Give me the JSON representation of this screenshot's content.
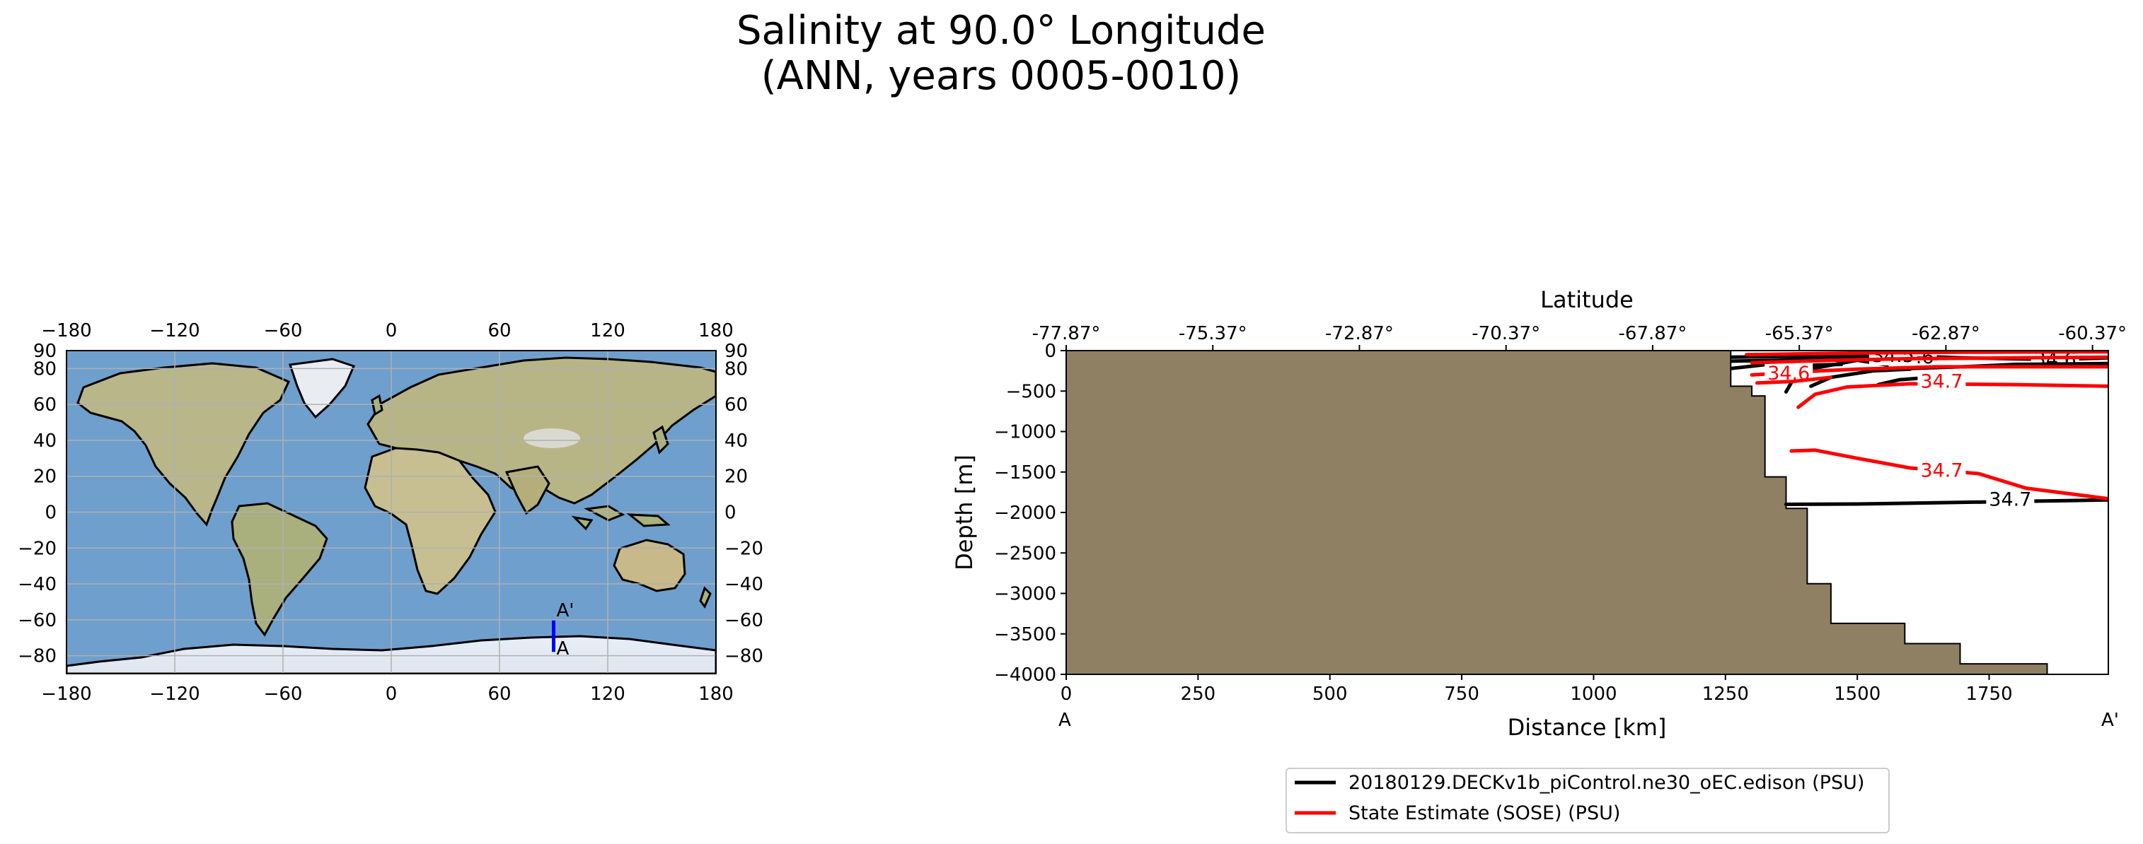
{
  "title": {
    "line1": "Salinity at 90.0° Longitude",
    "line2": "(ANN, years 0005-0010)"
  },
  "colors": {
    "model": "#000000",
    "obs": "#ff0000",
    "land": "#8f8064",
    "ocean": "#7fa8cf",
    "transect": "#0000ff",
    "grid": "#b0b0b0"
  },
  "map": {
    "x_ticks": [
      "−180",
      "−120",
      "−60",
      "0",
      "60",
      "120",
      "180"
    ],
    "y_ticks": [
      "90",
      "80",
      "60",
      "40",
      "20",
      "0",
      "−20",
      "−40",
      "−60",
      "−80"
    ],
    "y_ticks_right": [
      "90",
      "80",
      "60",
      "40",
      "20",
      "0",
      "−20",
      "−40",
      "−60",
      "−80"
    ],
    "x_tick_values": [
      -180,
      -120,
      -60,
      0,
      60,
      120,
      180
    ],
    "y_tick_values": [
      90,
      80,
      60,
      40,
      20,
      0,
      -20,
      -40,
      -60,
      -80
    ],
    "transect": {
      "lon": 90.0,
      "lat_start": -77.87,
      "lat_end": -60.37
    },
    "start_label": "A",
    "end_label": "A'"
  },
  "chart_data": {
    "type": "line",
    "title": "",
    "xlabel": "Distance [km]",
    "ylabel": "Depth [m]",
    "top_xlabel": "Latitude",
    "xlim": [
      0,
      1976
    ],
    "ylim": [
      -4000,
      0
    ],
    "x_ticks": [
      0,
      250,
      500,
      750,
      1000,
      1250,
      1500,
      1750
    ],
    "x_tick_labels": [
      "0",
      "250",
      "500",
      "750",
      "1000",
      "1250",
      "1500",
      "1750"
    ],
    "y_ticks": [
      0,
      -500,
      -1000,
      -1500,
      -2000,
      -2500,
      -3000,
      -3500,
      -4000
    ],
    "y_tick_labels": [
      "0",
      "−500",
      "−1000",
      "−1500",
      "−2000",
      "−2500",
      "−3000",
      "−3500",
      "−4000"
    ],
    "top_ticks_km": [
      0,
      278,
      556,
      834,
      1112,
      1390,
      1668,
      1946
    ],
    "top_tick_labels": [
      "-77.87°",
      "-75.37°",
      "-72.87°",
      "-70.37°",
      "-67.87°",
      "-65.37°",
      "-62.87°",
      "-60.37°"
    ],
    "start_label": "A",
    "end_label": "A'",
    "bathymetry": [
      [
        0,
        -4000
      ],
      [
        0,
        0
      ],
      [
        1260,
        0
      ],
      [
        1260,
        -440
      ],
      [
        1300,
        -440
      ],
      [
        1300,
        -560
      ],
      [
        1325,
        -560
      ],
      [
        1325,
        -1560
      ],
      [
        1365,
        -1560
      ],
      [
        1365,
        -1950
      ],
      [
        1405,
        -1950
      ],
      [
        1405,
        -2880
      ],
      [
        1450,
        -2880
      ],
      [
        1450,
        -3370
      ],
      [
        1590,
        -3370
      ],
      [
        1590,
        -3620
      ],
      [
        1695,
        -3620
      ],
      [
        1695,
        -3870
      ],
      [
        1860,
        -3870
      ],
      [
        1860,
        -4000
      ]
    ],
    "series": [
      {
        "name": "20180129.DECKv1b_piControl.ne30_oEC.edison (PSU)",
        "color": "#000000",
        "contours": [
          {
            "level": "34.7",
            "label_at": [
              1790,
              -1840
            ],
            "points": [
              [
                1365,
                -1900
              ],
              [
                1500,
                -1895
              ],
              [
                1650,
                -1880
              ],
              [
                1830,
                -1860
              ],
              [
                1976,
                -1845
              ]
            ]
          },
          {
            "level": "34.6",
            "label_at": [
              1875,
              -110
            ],
            "points": [
              [
                1262,
                -80
              ],
              [
                1400,
                -70
              ],
              [
                1550,
                -55
              ],
              [
                1700,
                -90
              ],
              [
                1876,
                -110
              ],
              [
                1976,
                -90
              ]
            ]
          },
          {
            "level": "34.6",
            "label_at": [
              1605,
              -80
            ],
            "points": [
              [
                1262,
                -220
              ],
              [
                1330,
                -170
              ],
              [
                1400,
                -240
              ],
              [
                1500,
                -120
              ],
              [
                1600,
                -220
              ],
              [
                1700,
                -200
              ],
              [
                1800,
                -170
              ],
              [
                1976,
                -160
              ]
            ]
          },
          {
            "level": "34.5",
            "label_at": [
              1568,
              -60
            ],
            "points": [
              [
                1262,
                -130
              ],
              [
                1350,
                -120
              ],
              [
                1450,
                -100
              ],
              [
                1550,
                -80
              ],
              [
                1650,
                -100
              ]
            ]
          },
          {
            "level": "",
            "label_at": null,
            "points": [
              [
                1365,
                -510
              ],
              [
                1385,
                -280
              ],
              [
                1410,
                -180
              ],
              [
                1470,
                -170
              ]
            ]
          },
          {
            "level": "",
            "label_at": null,
            "points": [
              [
                1412,
                -440
              ],
              [
                1450,
                -330
              ],
              [
                1530,
                -250
              ],
              [
                1600,
                -230
              ]
            ]
          },
          {
            "level": "",
            "label_at": null,
            "points": [
              [
                1540,
                -420
              ],
              [
                1580,
                -360
              ],
              [
                1640,
                -330
              ]
            ]
          }
        ]
      },
      {
        "name": "State Estimate (SOSE) (PSU)",
        "color": "#ff0000",
        "contours": [
          {
            "level": "34.7",
            "label_at": [
              1660,
              -1480
            ],
            "points": [
              [
                1375,
                -1240
              ],
              [
                1420,
                -1230
              ],
              [
                1500,
                -1330
              ],
              [
                1600,
                -1450
              ],
              [
                1730,
                -1520
              ],
              [
                1820,
                -1700
              ],
              [
                1976,
                -1830
              ]
            ]
          },
          {
            "level": "34.7",
            "label_at": [
              1660,
              -380
            ],
            "points": [
              [
                1388,
                -700
              ],
              [
                1420,
                -540
              ],
              [
                1480,
                -450
              ],
              [
                1600,
                -410
              ],
              [
                1800,
                -420
              ],
              [
                1976,
                -440
              ]
            ]
          },
          {
            "level": "34.6",
            "label_at": [
              1370,
              -280
            ],
            "points": [
              [
                1300,
                -300
              ],
              [
                1400,
                -260
              ],
              [
                1500,
                -230
              ],
              [
                1650,
                -200
              ],
              [
                1976,
                -200
              ]
            ]
          },
          {
            "level": "",
            "label_at": null,
            "points": [
              [
                1300,
                -150
              ],
              [
                1450,
                -120
              ],
              [
                1600,
                -100
              ],
              [
                1800,
                -90
              ],
              [
                1976,
                -80
              ]
            ]
          },
          {
            "level": "",
            "label_at": null,
            "points": [
              [
                1290,
                -50
              ],
              [
                1500,
                -30
              ],
              [
                1700,
                -20
              ],
              [
                1976,
                -15
              ]
            ]
          },
          {
            "level": "",
            "label_at": null,
            "points": [
              [
                1310,
                -400
              ],
              [
                1380,
                -380
              ],
              [
                1450,
                -330
              ]
            ]
          }
        ]
      }
    ],
    "legend": {
      "placement": "bottom-center",
      "entries": [
        {
          "label": "20180129.DECKv1b_piControl.ne30_oEC.edison (PSU)",
          "color": "#000000"
        },
        {
          "label": "State Estimate (SOSE) (PSU)",
          "color": "#ff0000"
        }
      ]
    }
  }
}
